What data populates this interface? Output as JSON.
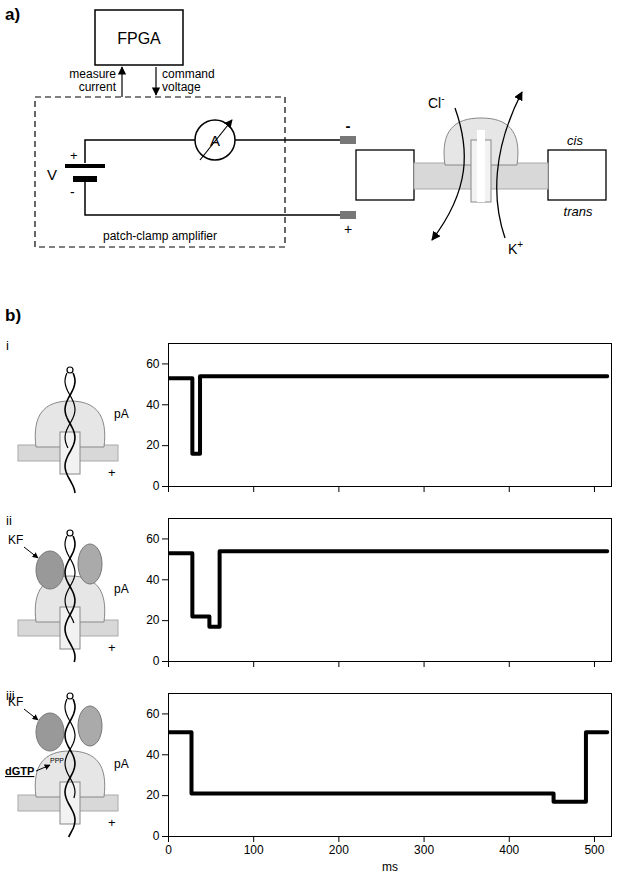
{
  "panel_a": {
    "label": "a)",
    "box": "FPGA",
    "measure": "measure current",
    "command": "command voltage",
    "amplifier": "patch-clamp amplifier",
    "battery_label": "V",
    "battery_plus": "+",
    "battery_minus": "-",
    "meter": "A",
    "electrode_top": "-",
    "electrode_bottom": "+",
    "anion": {
      "text": "Cl",
      "sup": "-"
    },
    "cation": {
      "text": "K",
      "sup": "+"
    },
    "cis": "cis",
    "trans": "trans"
  },
  "panel_b": {
    "label": "b)"
  },
  "chart_data": [
    {
      "type": "line",
      "panel": "i",
      "x": [
        0,
        28,
        37,
        515
      ],
      "values": [
        53,
        16,
        54,
        54
      ],
      "xlim": [
        0,
        520
      ],
      "xticks": [
        0,
        100,
        200,
        300,
        400,
        500
      ],
      "ylim": [
        0,
        70
      ],
      "yticks": [
        0,
        20,
        40,
        60
      ],
      "y_label": "pA",
      "tick_labels": "y",
      "line_style": "step",
      "color": "#000000",
      "cartoon": {
        "sign": "+"
      }
    },
    {
      "type": "line",
      "panel": "ii",
      "x": [
        0,
        28,
        48,
        60,
        515
      ],
      "values": [
        53,
        22,
        17,
        54,
        54
      ],
      "xlim": [
        0,
        520
      ],
      "xticks": [
        0,
        100,
        200,
        300,
        400,
        500
      ],
      "ylim": [
        0,
        70
      ],
      "yticks": [
        0,
        20,
        40,
        60
      ],
      "y_label": "pA",
      "tick_labels": "y",
      "line_style": "step",
      "color": "#000000",
      "cartoon": {
        "enzyme": "KF",
        "sign": "+"
      }
    },
    {
      "type": "line",
      "panel": "iii",
      "x": [
        0,
        27,
        452,
        490,
        515
      ],
      "values": [
        51,
        21,
        17,
        51,
        51
      ],
      "xlim": [
        0,
        520
      ],
      "xticks": [
        0,
        100,
        200,
        300,
        400,
        500
      ],
      "ylim": [
        0,
        70
      ],
      "yticks": [
        0,
        20,
        40,
        60
      ],
      "y_label": "pA",
      "x_label": "ms",
      "line_style": "step",
      "color": "#000000",
      "cartoon": {
        "enzyme": "KF",
        "nucleotide": "dGTP",
        "phosphates": "PPP",
        "sign": "+"
      }
    }
  ]
}
